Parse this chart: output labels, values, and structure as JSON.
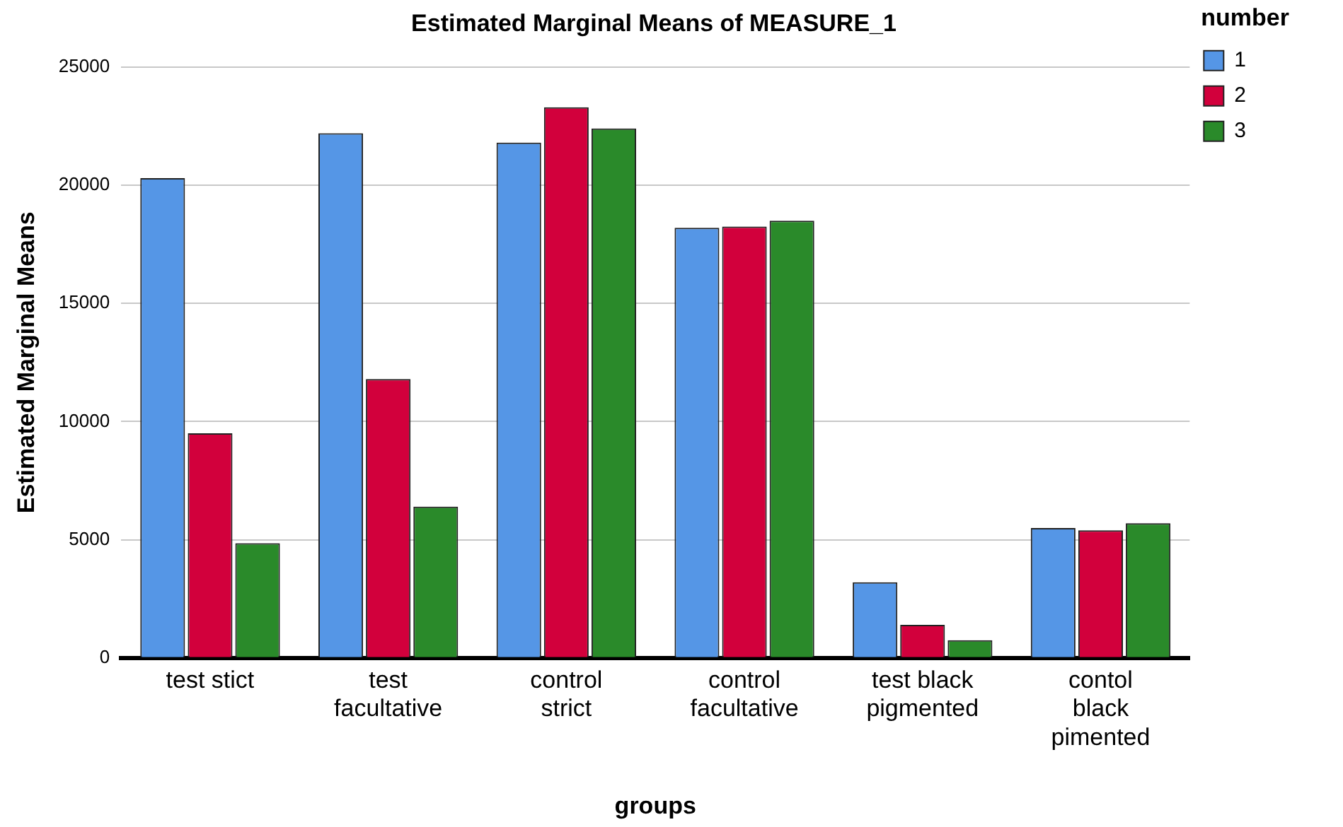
{
  "chart_data": {
    "type": "bar",
    "title": "Estimated Marginal Means of MEASURE_1",
    "xlabel": "groups",
    "ylabel": "Estimated Marginal Means",
    "legend_title": "number",
    "categories": [
      "test stict",
      "test facultative",
      "control strict",
      "control facultative",
      "test black pigmented",
      "contol black pimented"
    ],
    "series": [
      {
        "name": "1",
        "color": "#5596e6",
        "values": [
          20300,
          22200,
          21800,
          18200,
          3200,
          5500
        ]
      },
      {
        "name": "2",
        "color": "#d2003c",
        "values": [
          9500,
          11800,
          23300,
          18250,
          1400,
          5400
        ]
      },
      {
        "name": "3",
        "color": "#2a8a2a",
        "values": [
          4850,
          6400,
          22400,
          18500,
          750,
          5700
        ]
      }
    ],
    "ylim": [
      0,
      25000
    ],
    "yticks": [
      0,
      5000,
      10000,
      15000,
      20000,
      25000
    ],
    "grid": "y",
    "legend": "top right"
  }
}
